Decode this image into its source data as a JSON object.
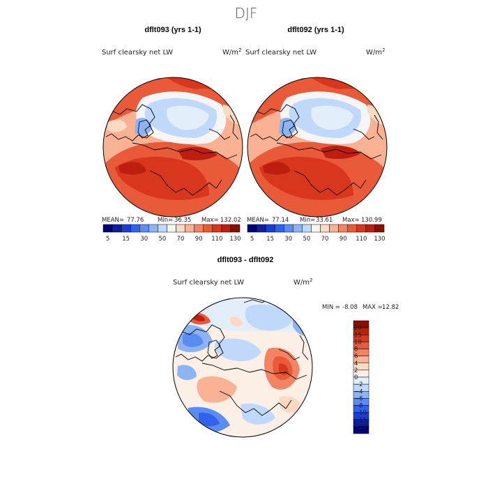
{
  "figure": {
    "title": "DJF"
  },
  "chart_data": [
    {
      "type": "heatmap",
      "projection": "north-polar-stereographic",
      "title": "dflt093 (yrs 1-1)",
      "variable": "Surf clearsky net LW",
      "units_base": "W/m",
      "units_exp": "2",
      "stats": {
        "mean_label": "MEAN=",
        "mean": "77.76",
        "min_label": "Min=",
        "min": "36.35",
        "max_label": "Max=",
        "max": "132.02"
      },
      "colorbar": {
        "levels": [
          5,
          10,
          15,
          20,
          30,
          40,
          50,
          60,
          70,
          80,
          90,
          100,
          110,
          120,
          130
        ],
        "tick_labels": [
          "5",
          "15",
          "30",
          "50",
          "70",
          "90",
          "110",
          "130"
        ],
        "colors": [
          "#00007a",
          "#0a1fa3",
          "#1a3dd6",
          "#2f63ee",
          "#5a8cf2",
          "#8cb4f5",
          "#c0d8fa",
          "#f5f5f5",
          "#fcd9c3",
          "#f9b193",
          "#f28463",
          "#e85a38",
          "#d9371d",
          "#bd1e0f",
          "#8a0d05"
        ]
      }
    },
    {
      "type": "heatmap",
      "projection": "north-polar-stereographic",
      "title": "dflt092 (yrs 1-1)",
      "variable": "Surf clearsky net LW",
      "units_base": "W/m",
      "units_exp": "2",
      "stats": {
        "mean_label": "MEAN=",
        "mean": "77.14",
        "min_label": "Min=",
        "min": "33.61",
        "max_label": "Max=",
        "max": "130.99"
      },
      "colorbar": {
        "levels": [
          5,
          10,
          15,
          20,
          30,
          40,
          50,
          60,
          70,
          80,
          90,
          100,
          110,
          120,
          130
        ],
        "tick_labels": [
          "5",
          "15",
          "30",
          "50",
          "70",
          "90",
          "110",
          "130"
        ],
        "colors": [
          "#00007a",
          "#0a1fa3",
          "#1a3dd6",
          "#2f63ee",
          "#5a8cf2",
          "#8cb4f5",
          "#c0d8fa",
          "#f5f5f5",
          "#fcd9c3",
          "#f9b193",
          "#f28463",
          "#e85a38",
          "#d9371d",
          "#bd1e0f",
          "#8a0d05"
        ]
      }
    },
    {
      "type": "heatmap",
      "projection": "north-polar-stereographic",
      "title": "dflt093 - dflt092",
      "variable": "Surf clearsky net LW",
      "units_base": "W/m",
      "units_exp": "2",
      "stats": {
        "min_label": "MIN =",
        "min": "-8.08",
        "max_label": "MAX =",
        "max": "12.82"
      },
      "colorbar": {
        "tick_labels": [
          "20",
          "15",
          "10",
          "8",
          "6",
          "4",
          "2",
          "0",
          "−2",
          "−4",
          "−6",
          "−8",
          "−10",
          "−15",
          "−20"
        ],
        "colors": [
          "#8a0d05",
          "#bd1e0f",
          "#d9371d",
          "#e85a38",
          "#f28463",
          "#f9b193",
          "#fcd9c3",
          "#fbefe6",
          "#e3eefb",
          "#c0d8fa",
          "#8cb4f5",
          "#5a8cf2",
          "#2f63ee",
          "#1a3dd6",
          "#0a1fa3",
          "#00007a"
        ]
      }
    }
  ]
}
